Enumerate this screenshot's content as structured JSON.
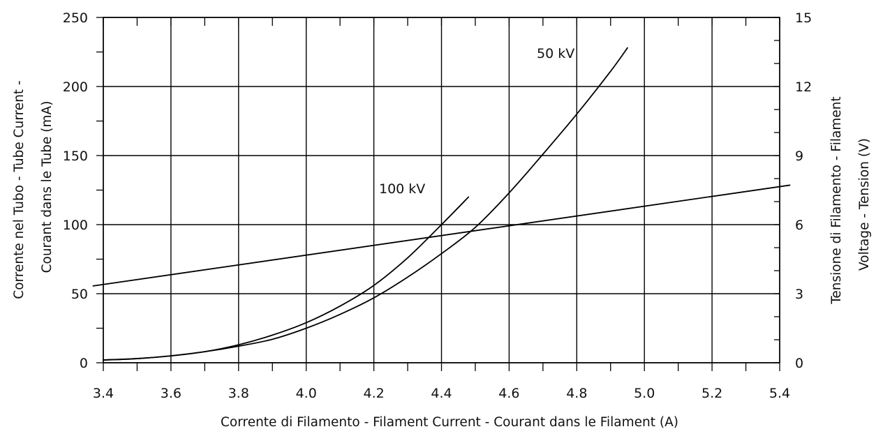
{
  "chart_data": {
    "type": "line",
    "title": "",
    "grid": true,
    "xlabel": "Corrente di Filamento - Filament Current - Courant dans le Filament  (A)",
    "ylabel": {
      "line1": "Corrente nel Tubo - Tube Current -",
      "line2": "Courant dans le Tube   (mA)"
    },
    "y2label": {
      "line1": "Tensione di Filamento -         Filament",
      "line2": "Voltage - Tension    (V)"
    },
    "xlim": [
      3.4,
      5.4
    ],
    "ylim": [
      0,
      250
    ],
    "y2lim": [
      0,
      15
    ],
    "x_ticks": [
      "3.4",
      "3.6",
      "3.8",
      "4.0",
      "4.2",
      "4.4",
      "4.6",
      "4.8",
      "5.0",
      "5.2",
      "5.4"
    ],
    "y_ticks": [
      "0",
      "50",
      "100",
      "150",
      "200",
      "250"
    ],
    "y2_ticks": [
      "0",
      "3",
      "6",
      "9",
      "12",
      "15"
    ],
    "annotations": [
      "50 kV",
      "100 kV"
    ],
    "series": [
      {
        "name": "50 kV",
        "axis": "left",
        "x": [
          3.4,
          3.5,
          3.6,
          3.7,
          3.8,
          3.9,
          4.0,
          4.1,
          4.2,
          4.3,
          4.4,
          4.5,
          4.6,
          4.7,
          4.8,
          4.9,
          4.95
        ],
        "y": [
          2,
          3,
          5,
          8,
          12,
          17,
          25,
          35,
          47,
          62,
          79,
          98,
          123,
          151,
          180,
          211,
          228
        ]
      },
      {
        "name": "100 kV",
        "axis": "left",
        "x": [
          3.4,
          3.5,
          3.6,
          3.7,
          3.8,
          3.9,
          4.0,
          4.1,
          4.2,
          4.3,
          4.4,
          4.48
        ],
        "y": [
          2,
          3,
          5,
          8,
          13,
          20,
          29,
          41,
          56,
          76,
          100,
          120
        ]
      },
      {
        "name": "",
        "axis": "right",
        "x": [
          3.4,
          5.4
        ],
        "y": [
          3.4,
          7.65
        ]
      }
    ]
  }
}
